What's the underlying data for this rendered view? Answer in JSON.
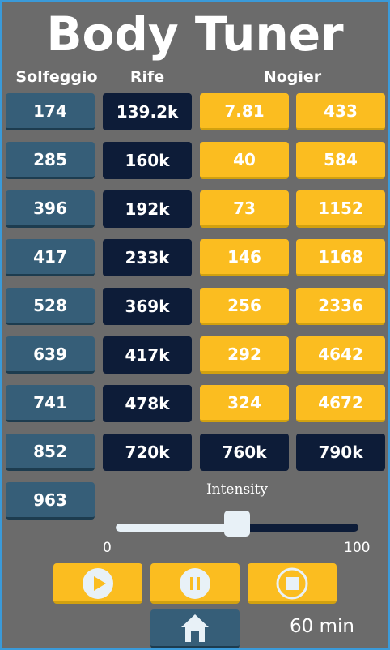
{
  "app": {
    "title": "Body Tuner"
  },
  "columns": {
    "solfeggio": "Solfeggio",
    "rife": "Rife",
    "nogier": "Nogier"
  },
  "solfeggio": [
    "174",
    "285",
    "396",
    "417",
    "528",
    "639",
    "741",
    "852",
    "963"
  ],
  "rife": [
    "139.2k",
    "160k",
    "192k",
    "233k",
    "369k",
    "417k",
    "478k",
    "720k"
  ],
  "nogier_a": [
    "7.81",
    "40",
    "73",
    "146",
    "256",
    "292",
    "324",
    "760k"
  ],
  "nogier_b": [
    "433",
    "584",
    "1152",
    "1168",
    "2336",
    "4642",
    "4672",
    "790k"
  ],
  "intensity": {
    "label": "Intensity",
    "min": "0",
    "max": "100",
    "value": 50
  },
  "controls": {
    "play_icon": "play-icon",
    "pause_icon": "pause-icon",
    "stop_icon": "stop-icon",
    "home_icon": "home-icon"
  },
  "timer": {
    "duration": "60 min"
  },
  "colors": {
    "solfeggio": "#365e78",
    "rife": "#0d1c38",
    "nogier": "#fbbd20",
    "background": "#6b6b6b"
  }
}
